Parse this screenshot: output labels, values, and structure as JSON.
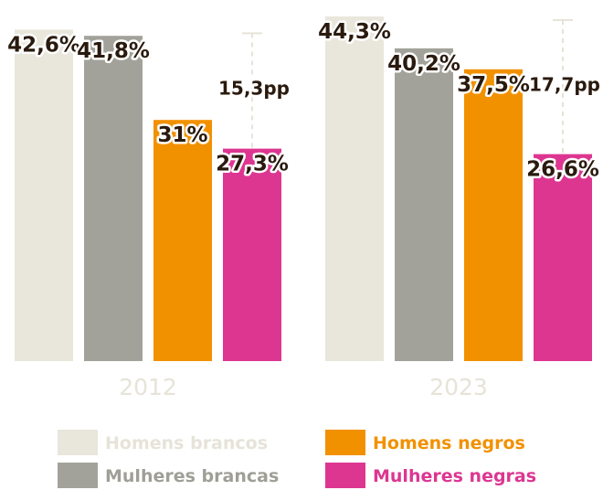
{
  "chart_data": {
    "type": "bar",
    "categories": [
      "2012",
      "2023"
    ],
    "series": [
      {
        "name": "Homens brancos",
        "values": [
          42.6,
          44.3
        ],
        "labels": [
          "42,6%",
          "44,3%"
        ],
        "color": "#e9e6dc",
        "text_color": "#e6e3d8"
      },
      {
        "name": "Mulheres brancas",
        "values": [
          41.8,
          40.2
        ],
        "labels": [
          "41,8%",
          "40,2%"
        ],
        "color": "#a2a29a",
        "text_color": "#9f9f97"
      },
      {
        "name": "Homens negros",
        "values": [
          31,
          37.5
        ],
        "labels": [
          "31%",
          "37,5%"
        ],
        "color": "#f29100",
        "text_color": "#f29100"
      },
      {
        "name": "Mulheres negras",
        "values": [
          27.3,
          26.6
        ],
        "labels": [
          "27,3%",
          "26,6%"
        ],
        "color": "#dd3691",
        "text_color": "#dd3691"
      }
    ],
    "gaps": [
      {
        "category": "2012",
        "label": "15,3pp",
        "from": 27.3,
        "to": 42.6
      },
      {
        "category": "2023",
        "label": "17,7pp",
        "from": 26.6,
        "to": 44.3
      }
    ],
    "ylim": [
      0,
      45
    ],
    "title": "",
    "xlabel": "",
    "ylabel": "",
    "legend_position": "bottom"
  }
}
